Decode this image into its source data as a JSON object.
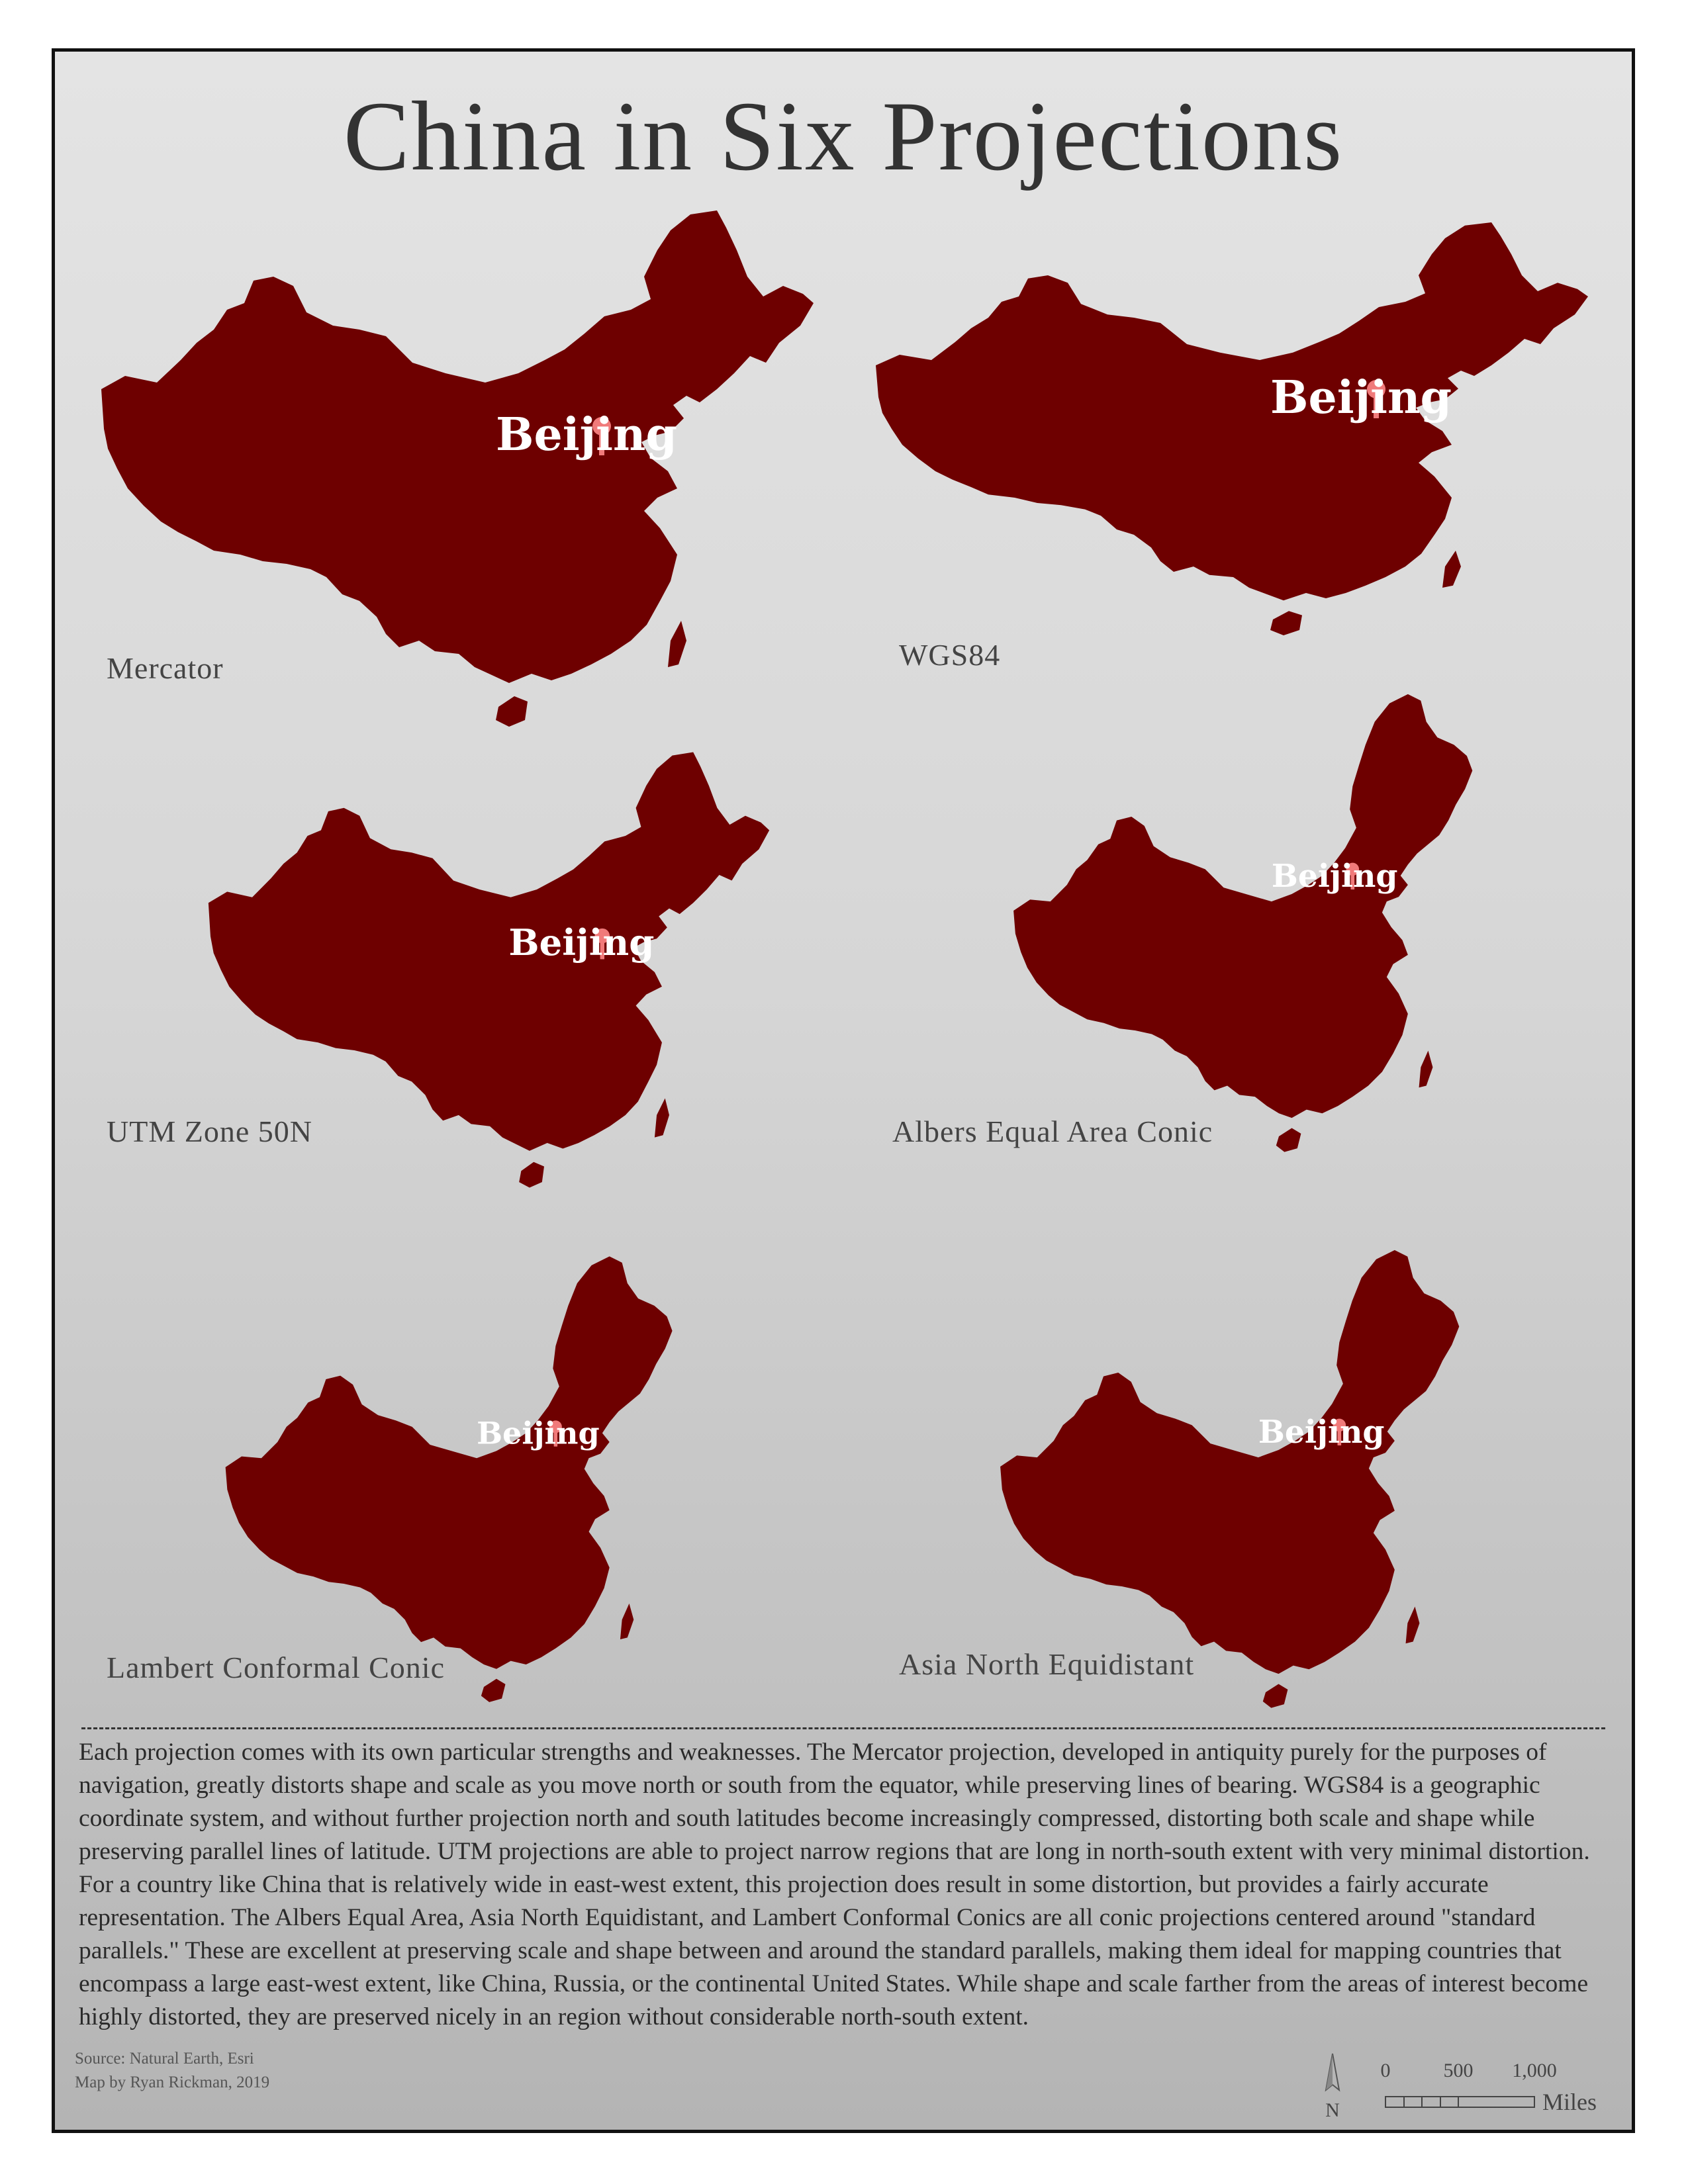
{
  "title": "China in Six Projections",
  "map_color": "#6e0000",
  "marker_color": "#f07a7a",
  "city": {
    "label": "Beijing"
  },
  "projections": [
    {
      "name": "Mercator"
    },
    {
      "name": "WGS84"
    },
    {
      "name": "UTM Zone 50N"
    },
    {
      "name": "Albers Equal Area Conic"
    },
    {
      "name": "Lambert Conformal Conic"
    },
    {
      "name": "Asia North Equidistant"
    }
  ],
  "description": "Each projection comes with its own particular strengths and weaknesses. The Mercator projection, developed in antiquity purely for the purposes of navigation, greatly distorts shape and scale as you move north or south from the equator, while preserving lines of bearing. WGS84 is a geographic coordinate system, and without further projection north and south latitudes become increasingly compressed, distorting both scale and shape while preserving parallel lines of latitude. UTM projections are able to project narrow regions that are long in north-south extent with very minimal distortion. For a country like China that is relatively wide in east-west extent, this projection does result in some distortion, but provides a fairly accurate representation. The Albers Equal Area, Asia North Equidistant, and Lambert Conformal Conics are all conic projections centered around \"standard parallels.\" These are excellent at preserving scale and shape between and around the standard parallels, making them ideal for mapping countries that encompass a large east-west extent, like China, Russia, or the continental United States. While shape and scale farther from the areas of interest become highly distorted, they are preserved nicely in an region without considerable north-south extent.",
  "credits": {
    "source": "Source: Natural Earth, Esri",
    "author": "Map by Ryan Rickman, 2019"
  },
  "north_arrow": {
    "label": "N"
  },
  "scale_bar": {
    "ticks": [
      "0",
      "500",
      "1,000"
    ],
    "unit": "Miles"
  }
}
